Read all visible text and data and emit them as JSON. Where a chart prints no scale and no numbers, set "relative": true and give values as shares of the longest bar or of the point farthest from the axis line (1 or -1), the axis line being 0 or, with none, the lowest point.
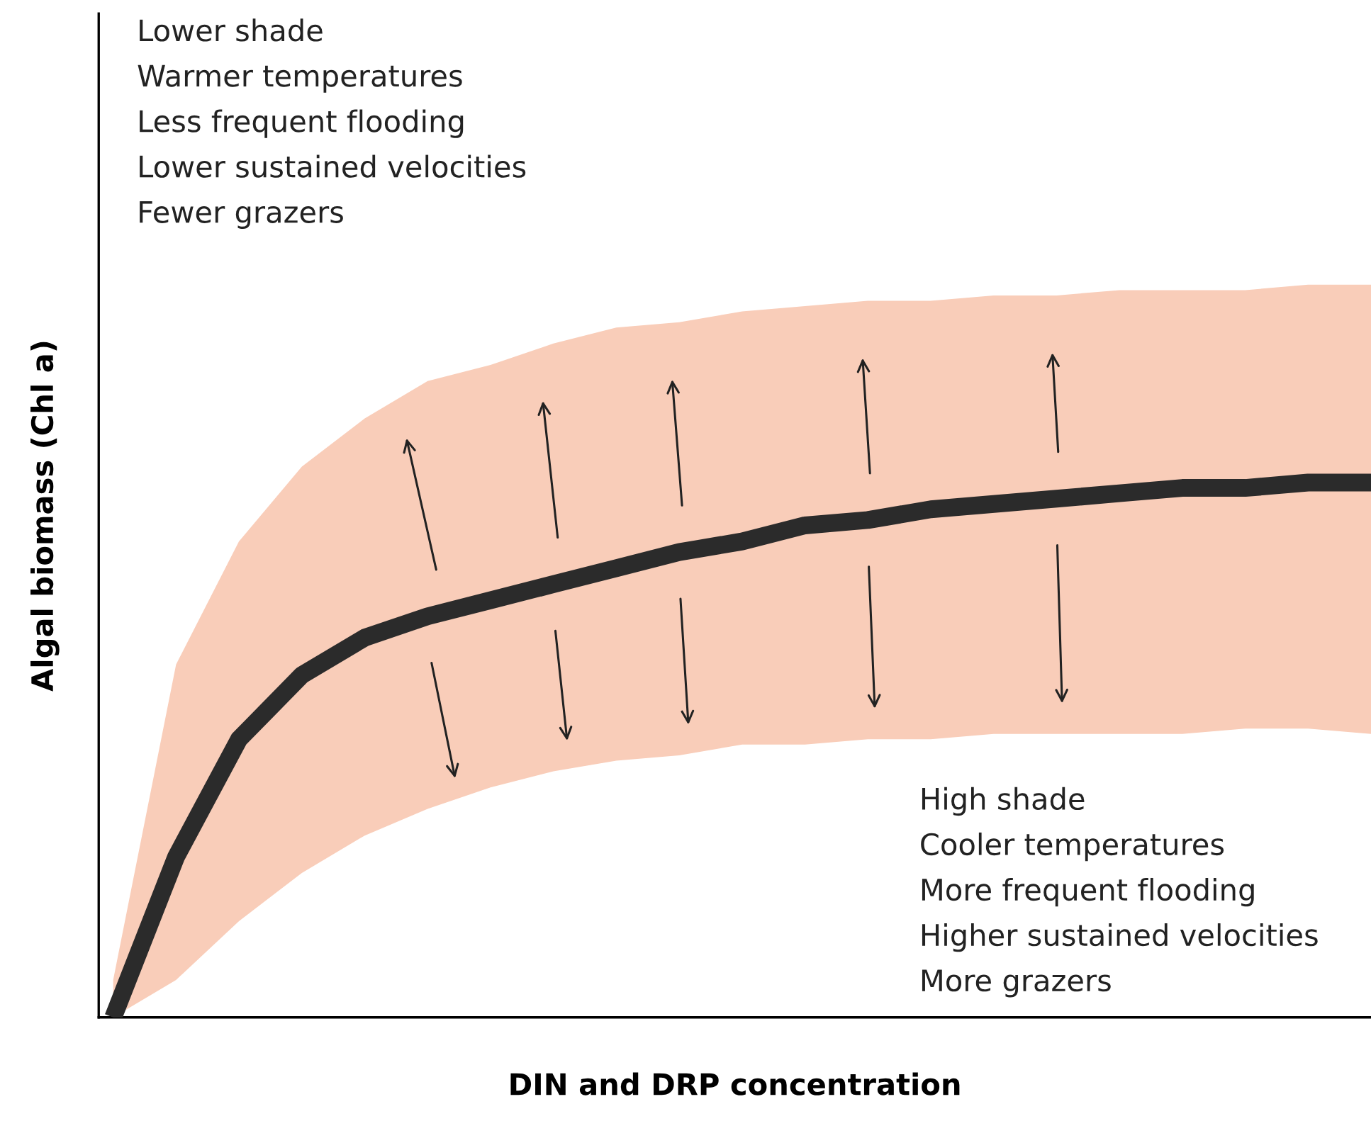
{
  "chart_data": {
    "type": "line",
    "relative": true,
    "xlabel": "DIN and DRP concentration",
    "ylabel": "Algal biomass (Chl a)",
    "categories": [
      null,
      null,
      null,
      null,
      null,
      null,
      null,
      null,
      null,
      null,
      null,
      null,
      null,
      null,
      null,
      null,
      null,
      null,
      null,
      null,
      null
    ],
    "series": [
      {
        "color": "#2b2b2b",
        "values": [
          0,
          0.3,
          0.52,
          0.64,
          0.71,
          0.75,
          0.78,
          0.81,
          0.84,
          0.87,
          0.89,
          0.92,
          0.93,
          0.95,
          0.96,
          0.97,
          0.98,
          0.99,
          0.99,
          1.0,
          1.0
        ],
        "lower": [
          0,
          0.07,
          0.18,
          0.27,
          0.34,
          0.39,
          0.43,
          0.46,
          0.48,
          0.49,
          0.51,
          0.51,
          0.52,
          0.52,
          0.53,
          0.53,
          0.53,
          0.53,
          0.54,
          0.54,
          0.53
        ],
        "upper": [
          0.07,
          0.66,
          0.89,
          1.03,
          1.12,
          1.19,
          1.22,
          1.26,
          1.29,
          1.3,
          1.32,
          1.33,
          1.34,
          1.34,
          1.35,
          1.35,
          1.36,
          1.36,
          1.36,
          1.37,
          1.37
        ]
      }
    ],
    "annotations": [
      "Lower shade\nWarmer temperatures\nLess frequent flooding\nLower sustained velocities\nFewer grazers",
      "High shade\nCooler temperatures\nMore frequent flooding\nHigher sustained velocities\nMore grazers"
    ],
    "legend": false,
    "marker": "none",
    "line_style": "solid"
  }
}
